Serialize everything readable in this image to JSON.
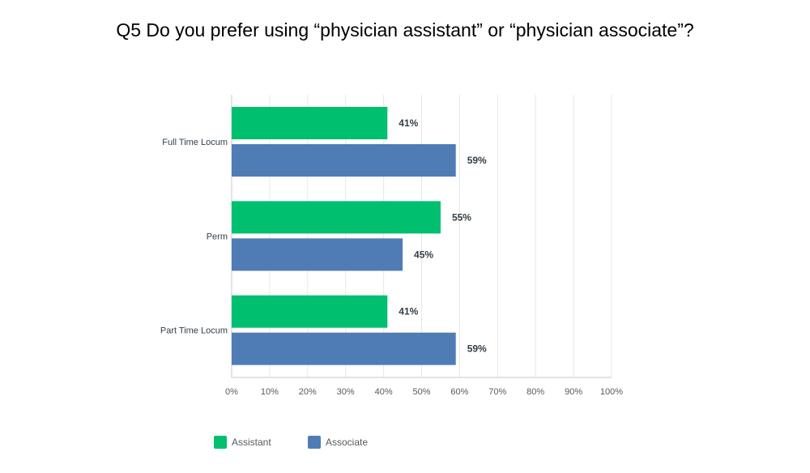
{
  "chart_data": {
    "type": "bar",
    "orientation": "horizontal",
    "title": "Q5 Do you prefer using “physician assistant” or “physician associate”?",
    "categories": [
      "Full Time Locum",
      "Perm",
      "Part Time Locum"
    ],
    "series": [
      {
        "name": "Assistant",
        "color": "#00bf6f",
        "values": [
          41,
          55,
          41
        ],
        "labels": [
          "41%",
          "55%",
          "41%"
        ]
      },
      {
        "name": "Associate",
        "color": "#507cb6",
        "values": [
          59,
          45,
          59
        ],
        "labels": [
          "59%",
          "45%",
          "59%"
        ]
      }
    ],
    "xlim": [
      0,
      100
    ],
    "x_ticks": [
      "0%",
      "10%",
      "20%",
      "30%",
      "40%",
      "50%",
      "60%",
      "70%",
      "80%",
      "90%",
      "100%"
    ],
    "grid": true,
    "legend_position": "bottom-left"
  }
}
